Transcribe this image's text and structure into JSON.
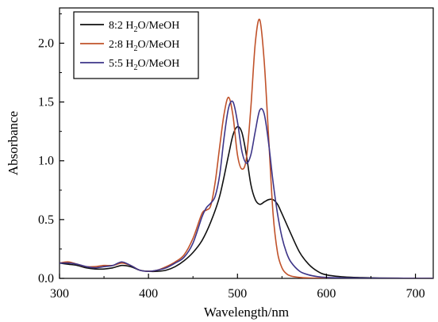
{
  "chart_data": {
    "type": "line",
    "title": "",
    "xlabel": "Wavelength/nm",
    "ylabel": "Absorbance",
    "xlim": [
      300,
      720
    ],
    "ylim": [
      0,
      2.3
    ],
    "x_ticks": [
      300,
      400,
      500,
      600,
      700
    ],
    "x_tick_labels": [
      "300",
      "400",
      "500",
      "600",
      "700"
    ],
    "y_ticks": [
      0,
      0.5,
      1.0,
      1.5,
      2.0
    ],
    "y_tick_labels": [
      "0.0",
      "0.5",
      "1.0",
      "1.5",
      "2.0"
    ],
    "grid": false,
    "legend_position": "top-left",
    "series": [
      {
        "name": "8:2 H2O/MeOH",
        "legend": {
          "ratio": "8:2 H",
          "sub": "2",
          "rest": "O/MeOH"
        },
        "color": "#111111",
        "x": [
          300,
          310,
          320,
          330,
          340,
          350,
          360,
          370,
          380,
          390,
          400,
          410,
          420,
          430,
          440,
          450,
          460,
          470,
          480,
          490,
          495,
          500,
          505,
          510,
          515,
          520,
          525,
          530,
          535,
          540,
          545,
          550,
          560,
          570,
          580,
          590,
          600,
          620,
          640,
          660,
          680,
          700,
          720
        ],
        "y": [
          0.13,
          0.12,
          0.11,
          0.09,
          0.08,
          0.08,
          0.09,
          0.11,
          0.1,
          0.07,
          0.06,
          0.06,
          0.07,
          0.1,
          0.15,
          0.22,
          0.32,
          0.48,
          0.7,
          1.05,
          1.22,
          1.29,
          1.24,
          1.05,
          0.8,
          0.67,
          0.63,
          0.65,
          0.67,
          0.67,
          0.63,
          0.55,
          0.38,
          0.22,
          0.12,
          0.06,
          0.03,
          0.012,
          0.006,
          0.003,
          0.002,
          0.001,
          0.001
        ]
      },
      {
        "name": "2:8 H2O/MeOH",
        "legend": {
          "ratio": "2:8 H",
          "sub": "2",
          "rest": "O/MeOH"
        },
        "color": "#c0522a",
        "x": [
          300,
          310,
          320,
          330,
          340,
          350,
          360,
          370,
          380,
          390,
          400,
          410,
          420,
          430,
          440,
          450,
          460,
          465,
          470,
          475,
          480,
          485,
          490,
          495,
          500,
          505,
          510,
          515,
          520,
          525,
          530,
          535,
          540,
          545,
          550,
          555,
          560,
          570,
          580,
          590,
          600,
          620,
          650,
          700,
          720
        ],
        "y": [
          0.13,
          0.14,
          0.12,
          0.1,
          0.1,
          0.11,
          0.11,
          0.13,
          0.11,
          0.07,
          0.06,
          0.07,
          0.1,
          0.14,
          0.2,
          0.34,
          0.55,
          0.58,
          0.62,
          0.82,
          1.12,
          1.4,
          1.54,
          1.38,
          1.05,
          0.93,
          1.02,
          1.45,
          2.0,
          2.2,
          1.85,
          1.2,
          0.55,
          0.22,
          0.09,
          0.04,
          0.02,
          0.008,
          0.004,
          0.002,
          0.001,
          0.001,
          0.001,
          0.0,
          0.0
        ]
      },
      {
        "name": "5:5 H2O/MeOH",
        "legend": {
          "ratio": "5:5 H",
          "sub": "2",
          "rest": "O/MeOH"
        },
        "color": "#3d3588",
        "x": [
          300,
          310,
          320,
          330,
          340,
          350,
          360,
          370,
          380,
          390,
          400,
          410,
          420,
          430,
          440,
          450,
          460,
          465,
          470,
          475,
          480,
          485,
          490,
          495,
          500,
          505,
          510,
          515,
          520,
          525,
          530,
          535,
          540,
          545,
          550,
          555,
          560,
          570,
          580,
          590,
          600,
          620,
          650,
          700,
          720
        ],
        "y": [
          0.13,
          0.13,
          0.12,
          0.1,
          0.09,
          0.1,
          0.11,
          0.14,
          0.11,
          0.07,
          0.06,
          0.07,
          0.09,
          0.13,
          0.18,
          0.3,
          0.52,
          0.6,
          0.64,
          0.7,
          0.88,
          1.2,
          1.45,
          1.5,
          1.33,
          1.08,
          0.98,
          1.05,
          1.25,
          1.43,
          1.4,
          1.15,
          0.82,
          0.55,
          0.35,
          0.22,
          0.14,
          0.06,
          0.03,
          0.015,
          0.008,
          0.003,
          0.001,
          0.0,
          0.0
        ]
      }
    ]
  }
}
